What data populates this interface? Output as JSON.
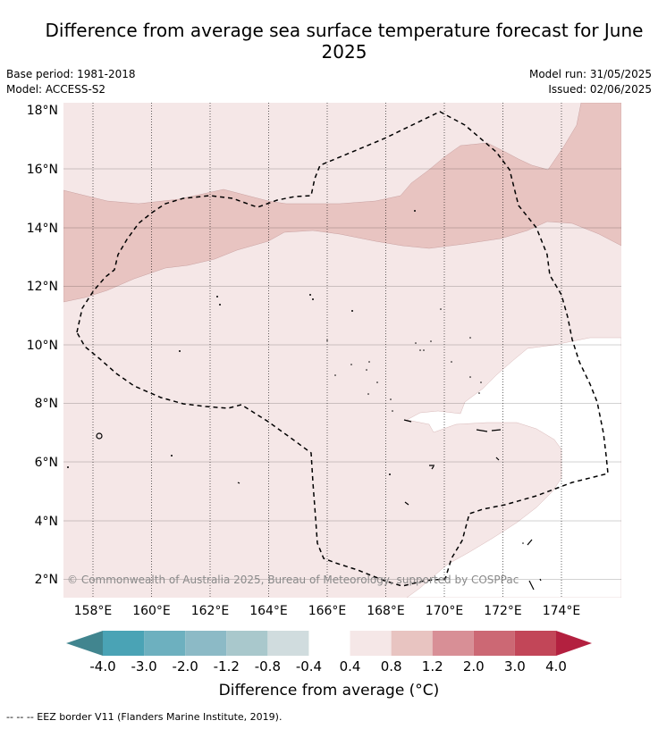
{
  "title": "Difference from average sea surface temperature forecast for June 2025",
  "meta": {
    "base_period": "Base period: 1981-2018",
    "model": "Model: ACCESS-S2",
    "model_run": "Model run: 31/05/2025",
    "issued": "Issued: 02/06/2025"
  },
  "map": {
    "lon_ticks": [
      "158°E",
      "160°E",
      "162°E",
      "164°E",
      "166°E",
      "168°E",
      "170°E",
      "172°E",
      "174°E"
    ],
    "lat_ticks": [
      "18°N",
      "16°N",
      "14°N",
      "12°N",
      "10°N",
      "8°N",
      "6°N",
      "4°N",
      "2°N"
    ],
    "copyright": "© Commonwealth of Australia 2025, Bureau of Meteorology, supported by COSPPac"
  },
  "colorbar": {
    "ticks": [
      "-4.0",
      "-3.0",
      "-2.0",
      "-1.2",
      "-0.8",
      "-0.4",
      "0.4",
      "0.8",
      "1.2",
      "2.0",
      "3.0",
      "4.0"
    ],
    "colors": [
      "#41858f",
      "#4aa3b5",
      "#6db0bf",
      "#8cbac6",
      "#a9c8cc",
      "#d0dcde",
      "#ffffff",
      "#f5e7e7",
      "#e8c4c1",
      "#d88f96",
      "#cc6874",
      "#c24658",
      "#b3203f"
    ],
    "label": "Difference from average (°C)"
  },
  "footer": "-- -- -- EEZ border V11 (Flanders Marine Institute, 2019)."
}
